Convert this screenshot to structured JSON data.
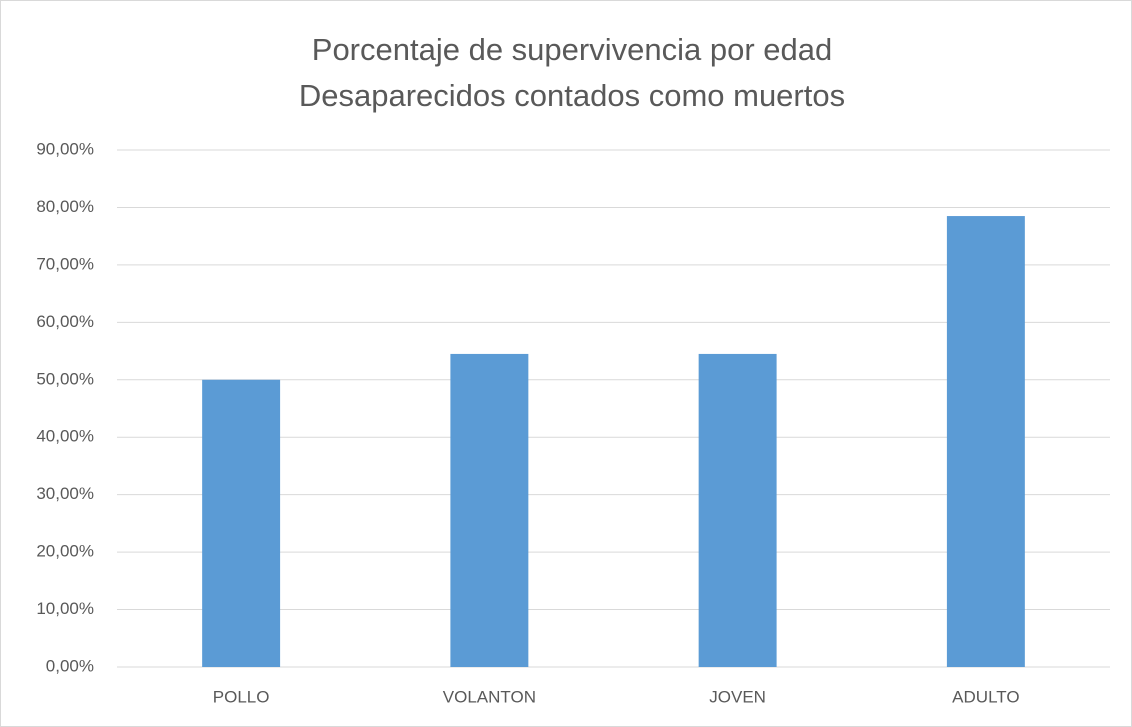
{
  "chart_data": {
    "type": "bar",
    "title": "Porcentaje de supervivencia por edad",
    "subtitle": "Desaparecidos contados como muertos",
    "categories": [
      "POLLO",
      "VOLANTON",
      "JOVEN",
      "ADULTO"
    ],
    "values": [
      50,
      54.5,
      54.5,
      78.5
    ],
    "color": "#5b9bd5",
    "ylim": [
      0,
      90
    ],
    "yticks": [
      {
        "value": 0,
        "label": "0,00%"
      },
      {
        "value": 10,
        "label": "10,00%"
      },
      {
        "value": 20,
        "label": "20,00%"
      },
      {
        "value": 30,
        "label": "30,00%"
      },
      {
        "value": 40,
        "label": "40,00%"
      },
      {
        "value": 50,
        "label": "50,00%"
      },
      {
        "value": 60,
        "label": "60,00%"
      },
      {
        "value": 70,
        "label": "70,00%"
      },
      {
        "value": 80,
        "label": "80,00%"
      },
      {
        "value": 90,
        "label": "90,00%"
      }
    ],
    "grid": true
  }
}
